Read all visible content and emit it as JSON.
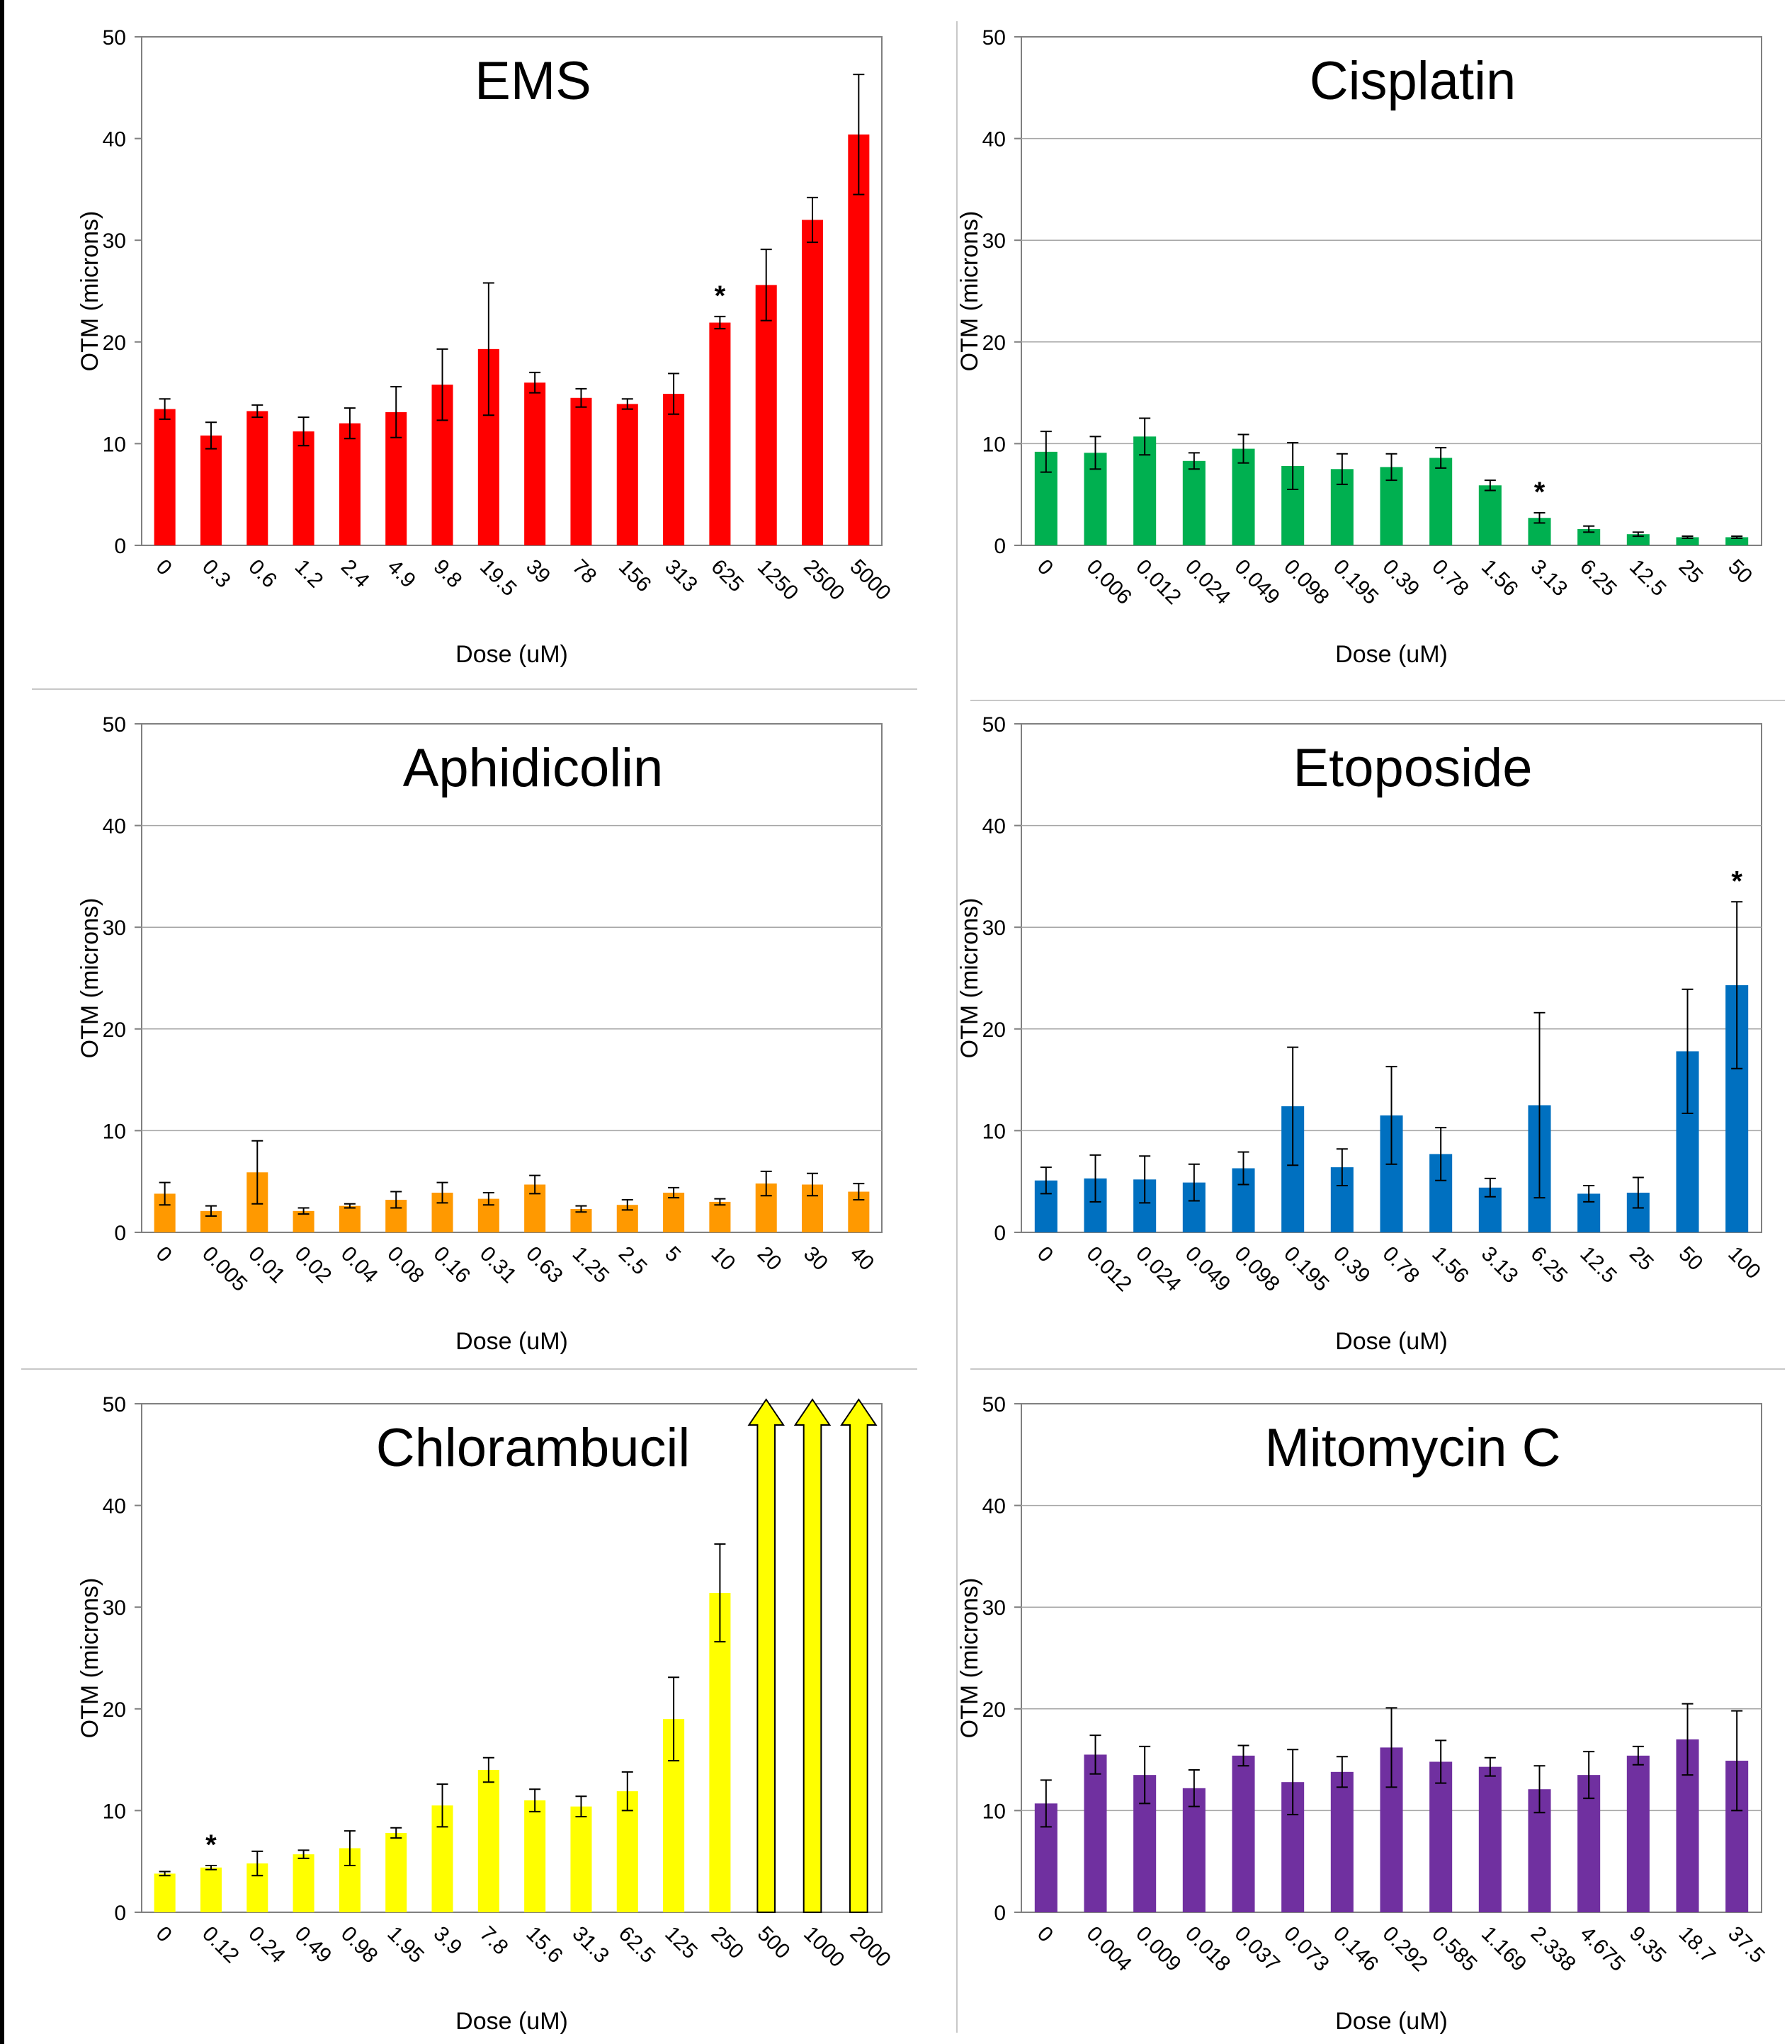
{
  "chart_data": [
    {
      "type": "bar",
      "title": "EMS",
      "xlabel": "Dose (uM)",
      "ylabel": "OTM (microns)",
      "ylim": [
        0,
        50
      ],
      "yticks": [
        "0",
        "10",
        "20",
        "30",
        "40",
        "50"
      ],
      "grid": false,
      "color": "#ff0000",
      "categories": [
        "0",
        "0.3",
        "0.6",
        "1.2",
        "2.4",
        "4.9",
        "9.8",
        "19.5",
        "39",
        "78",
        "156",
        "313",
        "625",
        "1250",
        "2500",
        "5000"
      ],
      "values": [
        13.4,
        10.8,
        13.2,
        11.2,
        12.0,
        13.1,
        15.8,
        19.3,
        16.0,
        14.5,
        13.9,
        14.9,
        21.9,
        25.6,
        32.0,
        40.4
      ],
      "errors": [
        1.0,
        1.3,
        0.6,
        1.4,
        1.5,
        2.5,
        3.5,
        6.5,
        1.0,
        0.9,
        0.5,
        2.0,
        0.6,
        3.5,
        2.2,
        5.9
      ],
      "significance": [
        "",
        "",
        "",
        "",
        "",
        "",
        "",
        "",
        "",
        "",
        "",
        "",
        "*",
        "",
        "",
        ""
      ]
    },
    {
      "type": "bar",
      "title": "Cisplatin",
      "xlabel": "Dose (uM)",
      "ylabel": "OTM (microns)",
      "ylim": [
        0,
        50
      ],
      "yticks": [
        "0",
        "10",
        "20",
        "30",
        "40",
        "50"
      ],
      "grid": true,
      "color": "#00b050",
      "categories": [
        "0",
        "0.006",
        "0.012",
        "0.024",
        "0.049",
        "0.098",
        "0.195",
        "0.39",
        "0.78",
        "1.56",
        "3.13",
        "6.25",
        "12.5",
        "25",
        "50"
      ],
      "values": [
        9.2,
        9.1,
        10.7,
        8.3,
        9.5,
        7.8,
        7.5,
        7.7,
        8.6,
        5.9,
        2.7,
        1.6,
        1.1,
        0.8,
        0.8
      ],
      "errors": [
        2.0,
        1.6,
        1.8,
        0.8,
        1.4,
        2.3,
        1.5,
        1.3,
        1.0,
        0.5,
        0.5,
        0.3,
        0.2,
        0.1,
        0.1
      ],
      "significance": [
        "",
        "",
        "",
        "",
        "",
        "",
        "",
        "",
        "",
        "",
        "*",
        "",
        "",
        "",
        ""
      ]
    },
    {
      "type": "bar",
      "title": "Aphidicolin",
      "xlabel": "Dose (uM)",
      "ylabel": "OTM (microns)",
      "ylim": [
        0,
        50
      ],
      "yticks": [
        "0",
        "10",
        "20",
        "30",
        "40",
        "50"
      ],
      "grid": true,
      "color": "#ff9900",
      "categories": [
        "0",
        "0.005",
        "0.01",
        "0.02",
        "0.04",
        "0.08",
        "0.16",
        "0.31",
        "0.63",
        "1.25",
        "2.5",
        "5",
        "10",
        "20",
        "30",
        "40"
      ],
      "values": [
        3.8,
        2.1,
        5.9,
        2.1,
        2.6,
        3.2,
        3.9,
        3.3,
        4.7,
        2.3,
        2.7,
        3.9,
        3.0,
        4.8,
        4.7,
        4.0
      ],
      "errors": [
        1.1,
        0.5,
        3.1,
        0.3,
        0.2,
        0.8,
        1.0,
        0.6,
        0.9,
        0.3,
        0.5,
        0.5,
        0.3,
        1.2,
        1.1,
        0.8
      ],
      "significance": [
        "",
        "",
        "",
        "",
        "",
        "",
        "",
        "",
        "",
        "",
        "",
        "",
        "",
        "",
        "",
        ""
      ]
    },
    {
      "type": "bar",
      "title": "Etoposide",
      "xlabel": "Dose (uM)",
      "ylabel": "OTM (microns)",
      "ylim": [
        0,
        50
      ],
      "yticks": [
        "0",
        "10",
        "20",
        "30",
        "40",
        "50"
      ],
      "grid": true,
      "color": "#0070c0",
      "categories": [
        "0",
        "0.012",
        "0.024",
        "0.049",
        "0.098",
        "0.195",
        "0.39",
        "0.78",
        "1.56",
        "3.13",
        "6.25",
        "12.5",
        "25",
        "50",
        "100"
      ],
      "values": [
        5.1,
        5.3,
        5.2,
        4.9,
        6.3,
        12.4,
        6.4,
        11.5,
        7.7,
        4.4,
        12.5,
        3.8,
        3.9,
        17.8,
        24.3
      ],
      "errors": [
        1.3,
        2.3,
        2.3,
        1.8,
        1.6,
        5.8,
        1.8,
        4.8,
        2.6,
        0.9,
        9.1,
        0.8,
        1.5,
        6.1,
        8.2
      ],
      "significance": [
        "",
        "",
        "",
        "",
        "",
        "",
        "",
        "",
        "",
        "",
        "",
        "",
        "",
        "",
        "*"
      ]
    },
    {
      "type": "bar",
      "title": "Chlorambucil",
      "xlabel": "Dose (uM)",
      "ylabel": "OTM (microns)",
      "ylim": [
        0,
        50
      ],
      "yticks": [
        "0",
        "10",
        "20",
        "30",
        "40",
        "50"
      ],
      "grid": false,
      "color": "#ffff00",
      "categories": [
        "0",
        "0.12",
        "0.24",
        "0.49",
        "0.98",
        "1.95",
        "3.9",
        "7.8",
        "15.6",
        "31.3",
        "62.5",
        "125",
        "250",
        "500",
        "1000",
        "2000"
      ],
      "values": [
        3.8,
        4.4,
        4.8,
        5.7,
        6.3,
        7.8,
        10.5,
        14.0,
        11.0,
        10.4,
        11.9,
        19.0,
        31.4,
        50,
        50,
        50
      ],
      "errors": [
        0.2,
        0.2,
        1.2,
        0.4,
        1.7,
        0.5,
        2.1,
        1.2,
        1.1,
        1.0,
        1.9,
        4.1,
        4.8,
        0,
        0,
        0
      ],
      "off_scale": [
        false,
        false,
        false,
        false,
        false,
        false,
        false,
        false,
        false,
        false,
        false,
        false,
        false,
        true,
        true,
        true
      ],
      "significance": [
        "",
        "*",
        "",
        "",
        "",
        "",
        "",
        "",
        "",
        "",
        "",
        "",
        "",
        "",
        "",
        ""
      ]
    },
    {
      "type": "bar",
      "title": "Mitomycin C",
      "xlabel": "Dose (uM)",
      "ylabel": "OTM (microns)",
      "ylim": [
        0,
        50
      ],
      "yticks": [
        "0",
        "10",
        "20",
        "30",
        "40",
        "50"
      ],
      "grid": true,
      "color": "#7030a0",
      "categories": [
        "0",
        "0.004",
        "0.009",
        "0.018",
        "0.037",
        "0.073",
        "0.146",
        "0.292",
        "0.585",
        "1.169",
        "2.338",
        "4.675",
        "9.35",
        "18.7",
        "37.5"
      ],
      "values": [
        10.7,
        15.5,
        13.5,
        12.2,
        15.4,
        12.8,
        13.8,
        16.2,
        14.8,
        14.3,
        12.1,
        13.5,
        15.4,
        17.0,
        14.9
      ],
      "errors": [
        2.3,
        1.9,
        2.8,
        1.8,
        1.0,
        3.2,
        1.5,
        3.9,
        2.1,
        0.9,
        2.3,
        2.3,
        0.9,
        3.5,
        4.9
      ],
      "significance": [
        "",
        "",
        "",
        "",
        "",
        "",
        "",
        "",
        "",
        "",
        "",
        "",
        "",
        "",
        ""
      ]
    }
  ]
}
